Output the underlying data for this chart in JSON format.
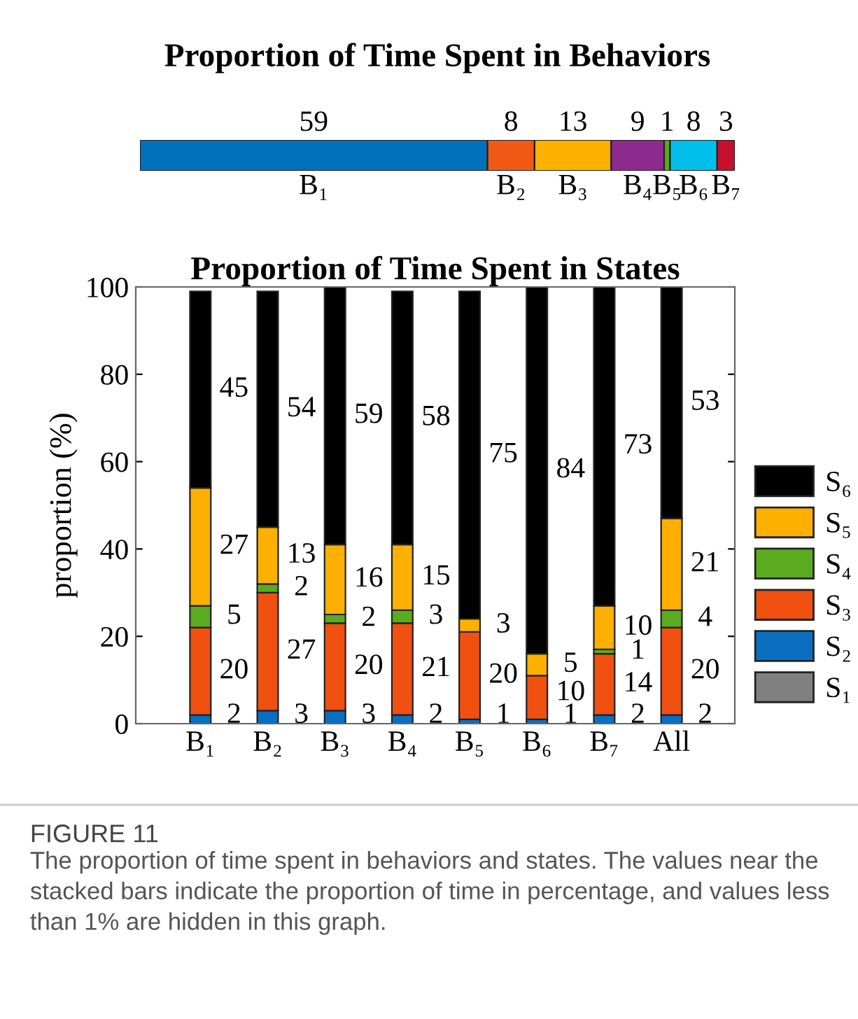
{
  "chart_data": [
    {
      "type": "bar",
      "orientation": "horizontal",
      "stacked": true,
      "title": "Proportion of Time Spent in Behaviors",
      "categories": [
        null
      ],
      "data_labels": true,
      "tick_labels": false,
      "series": [
        {
          "name": "B₁",
          "color": "#0072bd",
          "values": [
            59
          ]
        },
        {
          "name": "B₂",
          "color": "#f05a14",
          "values": [
            8
          ]
        },
        {
          "name": "B₃",
          "color": "#fdb000",
          "values": [
            13
          ]
        },
        {
          "name": "B₄",
          "color": "#8e2a8e",
          "values": [
            9
          ]
        },
        {
          "name": "B₅",
          "color": "#5aab1d",
          "values": [
            1
          ]
        },
        {
          "name": "B₆",
          "color": "#00bfea",
          "values": [
            8
          ]
        },
        {
          "name": "B₇",
          "color": "#c5102e",
          "values": [
            3
          ]
        }
      ]
    },
    {
      "type": "bar",
      "stacked": true,
      "title": "Proportion of Time Spent in States",
      "ylabel": "proportion (%)",
      "categories": [
        "B₁",
        "B₂",
        "B₃",
        "B₄",
        "B₅",
        "B₆",
        "B₇",
        "All"
      ],
      "ylim": [
        0,
        100
      ],
      "yticks": [
        0,
        20,
        40,
        60,
        80,
        100
      ],
      "grid": false,
      "legend": "right",
      "annotations": [
        "FIGURE 11",
        "The proportion of time spent in behaviors and states. The values near the stacked bars indicate the proportion of time in percentage, and values less than 1% are hidden in this graph."
      ],
      "series": [
        {
          "name": "S₁",
          "color": "#808080",
          "values": [
            0,
            0,
            0,
            0,
            0,
            0,
            0,
            0
          ],
          "value_labels": [
            null,
            null,
            null,
            null,
            null,
            null,
            null,
            null
          ]
        },
        {
          "name": "S₂",
          "color": "#0a6fc0",
          "values": [
            2,
            3,
            3,
            2,
            1,
            1,
            2,
            2
          ],
          "value_labels": [
            "2",
            "3",
            "3",
            "2",
            "1",
            "1",
            "2",
            "2"
          ]
        },
        {
          "name": "S₃",
          "color": "#f05010",
          "values": [
            20,
            27,
            20,
            21,
            20,
            10,
            14,
            20
          ],
          "value_labels": [
            "20",
            "27",
            "20",
            "21",
            "20",
            "10",
            "14",
            "20"
          ]
        },
        {
          "name": "S₄",
          "color": "#5aab1d",
          "values": [
            5,
            2,
            2,
            3,
            0,
            0,
            1,
            4
          ],
          "value_labels": [
            "5",
            "2",
            "2",
            "3",
            null,
            null,
            "1",
            "4"
          ]
        },
        {
          "name": "S₅",
          "color": "#fdb000",
          "values": [
            27,
            13,
            16,
            15,
            3,
            5,
            10,
            21
          ],
          "value_labels": [
            "27",
            "13",
            "16",
            "15",
            "3",
            "5",
            "10",
            "21"
          ]
        },
        {
          "name": "S₆",
          "color": "#000000",
          "values": [
            45,
            54,
            59,
            58,
            75,
            84,
            73,
            53
          ],
          "value_labels": [
            "45",
            "54",
            "59",
            "58",
            "75",
            "84",
            "73",
            "53"
          ]
        }
      ]
    }
  ]
}
